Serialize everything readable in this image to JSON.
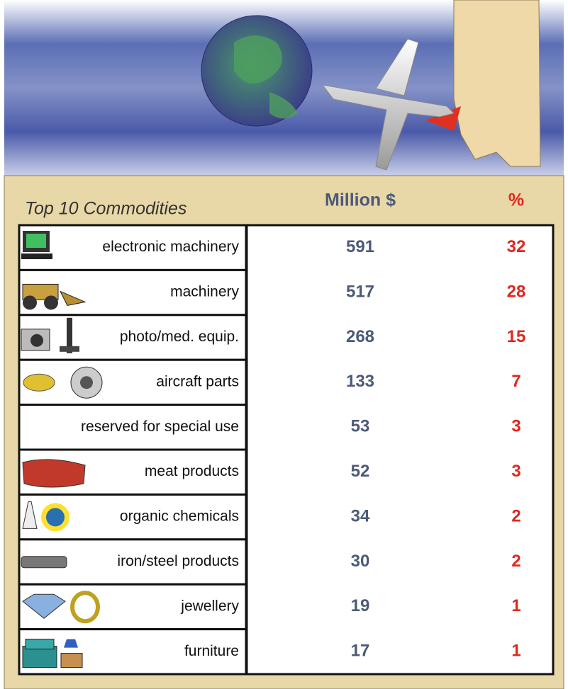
{
  "table": {
    "title": "Top 10 Commodities",
    "columns": [
      "Million $",
      "%"
    ],
    "rows": [
      {
        "commodity": "electronic machinery",
        "million": 591,
        "percent": 32
      },
      {
        "commodity": "machinery",
        "million": 517,
        "percent": 28
      },
      {
        "commodity": "photo/med. equip.",
        "million": 268,
        "percent": 15
      },
      {
        "commodity": "aircraft parts",
        "million": 133,
        "percent": 7
      },
      {
        "commodity": "reserved for special use",
        "million": 53,
        "percent": 3
      },
      {
        "commodity": "meat products",
        "million": 52,
        "percent": 3
      },
      {
        "commodity": "organic chemicals",
        "million": 34,
        "percent": 2
      },
      {
        "commodity": "iron/steel products",
        "million": 30,
        "percent": 2
      },
      {
        "commodity": "jewellery",
        "million": 19,
        "percent": 1
      },
      {
        "commodity": "furniture",
        "million": 17,
        "percent": 1
      }
    ]
  }
}
